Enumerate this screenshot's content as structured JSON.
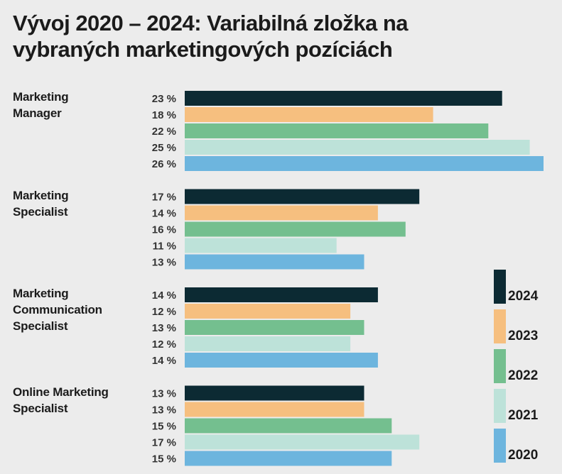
{
  "chart_data": {
    "type": "bar",
    "title": "Vývoj 2020 – 2024: Variabilná zložka na vybraných marketingových pozíciách",
    "value_suffix": " %",
    "orientation": "horizontal",
    "legend_placement": "right",
    "grid": false,
    "categories": [
      [
        "Marketing",
        "Manager"
      ],
      [
        "Marketing",
        "Specialist"
      ],
      [
        "Marketing",
        "Communication",
        "Specialist"
      ],
      [
        "Online Marketing",
        "Specialist"
      ]
    ],
    "series": [
      {
        "name": "2024",
        "color": "#0c2a33",
        "values": [
          23,
          17,
          14,
          13
        ]
      },
      {
        "name": "2023",
        "color": "#f6bf7f",
        "values": [
          18,
          14,
          12,
          13
        ]
      },
      {
        "name": "2022",
        "color": "#74bf8f",
        "values": [
          22,
          16,
          13,
          15
        ]
      },
      {
        "name": "2021",
        "color": "#bde2d9",
        "values": [
          25,
          11,
          12,
          17
        ]
      },
      {
        "name": "2020",
        "color": "#6db5de",
        "values": [
          26,
          13,
          14,
          15
        ]
      }
    ],
    "xlim": [
      0,
      26
    ]
  }
}
